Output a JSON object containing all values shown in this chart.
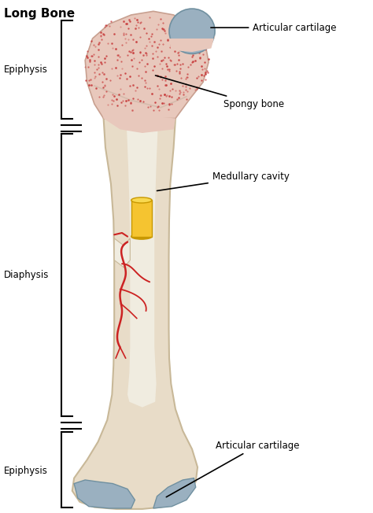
{
  "title": "Long Bone",
  "background_color": "#ffffff",
  "bone_color": "#e8dcc8",
  "bone_edge_color": "#c8b898",
  "spongy_fill": "#e8c8bc",
  "spongy_edge": "#c8a090",
  "cartilage_color": "#9ab0c0",
  "cartilage_edge": "#7090a0",
  "inner_color": "#f0ece0",
  "red_color": "#cc2222",
  "yellow_color": "#f5c430",
  "yellow_dark": "#c89800",
  "yellow_top": "#f8d850",
  "flap_color": "#f0ece0",
  "flap_edge": "#c8b898",
  "labels": {
    "epiphysis_top": "Epiphysis",
    "epiphysis_bottom": "Epiphysis",
    "diaphysis": "Diaphysis",
    "articular_cartilage_top": "Articular cartilage",
    "articular_cartilage_bottom": "Articular cartilage",
    "spongy_bone": "Spongy bone",
    "medullary_cavity": "Medullary cavity"
  },
  "figsize": [
    4.74,
    6.52
  ],
  "dpi": 100
}
